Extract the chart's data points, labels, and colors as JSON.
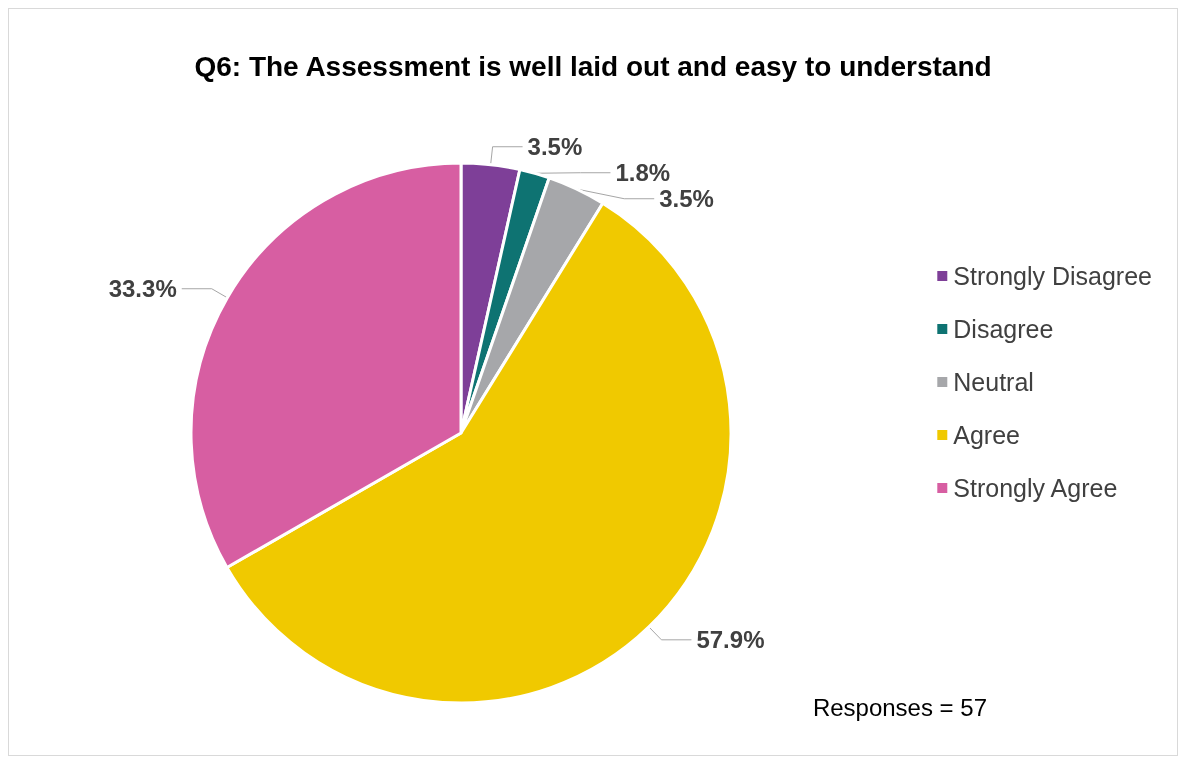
{
  "chart_data": {
    "type": "pie",
    "title": "Q6: The Assessment is well laid out and easy to understand",
    "categories": [
      "Strongly Disagree",
      "Disagree",
      "Neutral",
      "Agree",
      "Strongly Agree"
    ],
    "values": [
      3.5,
      1.8,
      3.5,
      57.9,
      33.3
    ],
    "colors": [
      "#7e3f98",
      "#0e7372",
      "#a6a7aa",
      "#f0c900",
      "#d75ea2"
    ],
    "value_labels": [
      "3.5%",
      "1.8%",
      "3.5%",
      "57.9%",
      "33.3%"
    ],
    "legend": "right",
    "annotations": [
      "Responses = 57"
    ]
  }
}
